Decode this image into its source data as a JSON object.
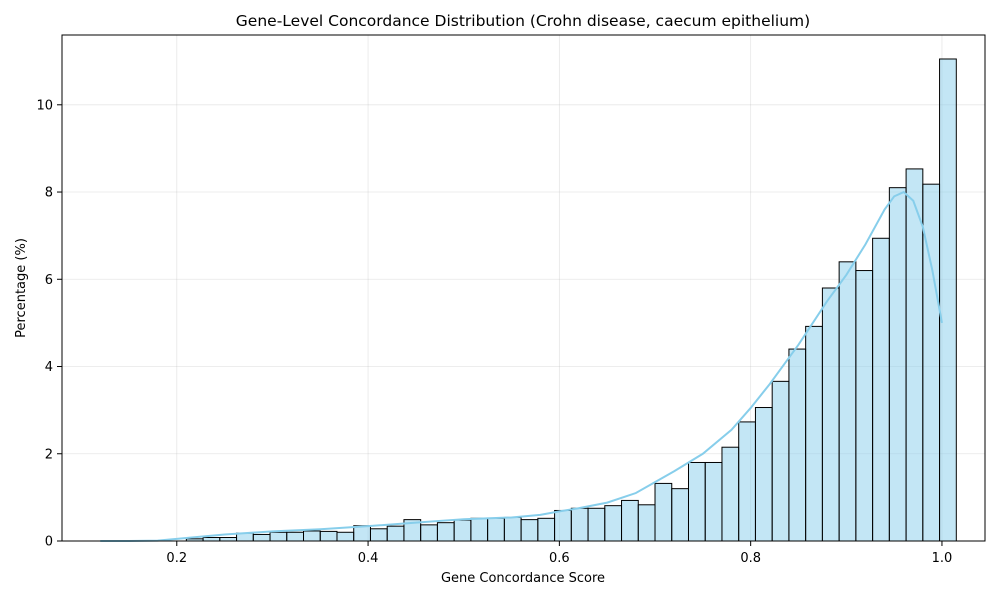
{
  "chart_data": {
    "type": "bar",
    "title": "Gene-Level Concordance Distribution (Crohn disease, caecum epithelium)",
    "xlabel": "Gene Concordance Score",
    "ylabel": "Percentage (%)",
    "xlim": [
      0.08,
      1.045
    ],
    "ylim": [
      0,
      11.6
    ],
    "xticks": [
      0.2,
      0.4,
      0.6,
      0.8,
      1.0
    ],
    "xtick_labels": [
      "0.2",
      "0.4",
      "0.6",
      "0.8",
      "1.0"
    ],
    "yticks": [
      0,
      2,
      4,
      6,
      8,
      10
    ],
    "ytick_labels": [
      "0",
      "2",
      "4",
      "6",
      "8",
      "10"
    ],
    "grid": true,
    "bin_start": 0.1225,
    "bin_width": 0.0175,
    "values": [
      0.0,
      0.0,
      0.0,
      0.0,
      0.0,
      0.05,
      0.08,
      0.08,
      0.18,
      0.15,
      0.2,
      0.2,
      0.23,
      0.22,
      0.2,
      0.35,
      0.28,
      0.34,
      0.49,
      0.37,
      0.42,
      0.48,
      0.52,
      0.52,
      0.54,
      0.49,
      0.52,
      0.7,
      0.75,
      0.75,
      0.81,
      0.93,
      0.83,
      1.32,
      1.2,
      1.8,
      1.8,
      2.15,
      2.73,
      3.06,
      3.66,
      4.4,
      4.92,
      5.8,
      6.4,
      6.2,
      6.94,
      8.1,
      8.53,
      8.18,
      11.05
    ],
    "kde": {
      "x": [
        0.12,
        0.15,
        0.18,
        0.2,
        0.22,
        0.25,
        0.3,
        0.35,
        0.4,
        0.45,
        0.5,
        0.55,
        0.58,
        0.6,
        0.62,
        0.65,
        0.68,
        0.7,
        0.72,
        0.75,
        0.78,
        0.8,
        0.82,
        0.85,
        0.88,
        0.9,
        0.92,
        0.94,
        0.95,
        0.96,
        0.97,
        0.98,
        0.99,
        1.0
      ],
      "y": [
        0.0,
        0.0,
        0.01,
        0.05,
        0.09,
        0.15,
        0.22,
        0.27,
        0.34,
        0.42,
        0.5,
        0.54,
        0.6,
        0.68,
        0.75,
        0.88,
        1.1,
        1.35,
        1.6,
        2.0,
        2.55,
        3.05,
        3.6,
        4.5,
        5.5,
        6.1,
        6.8,
        7.6,
        7.9,
        8.0,
        7.8,
        7.2,
        6.2,
        5.0
      ]
    },
    "colors": {
      "bar_fill": "#87ceeb",
      "bar_edge": "#000000",
      "kde_line": "#87ceeb"
    }
  }
}
